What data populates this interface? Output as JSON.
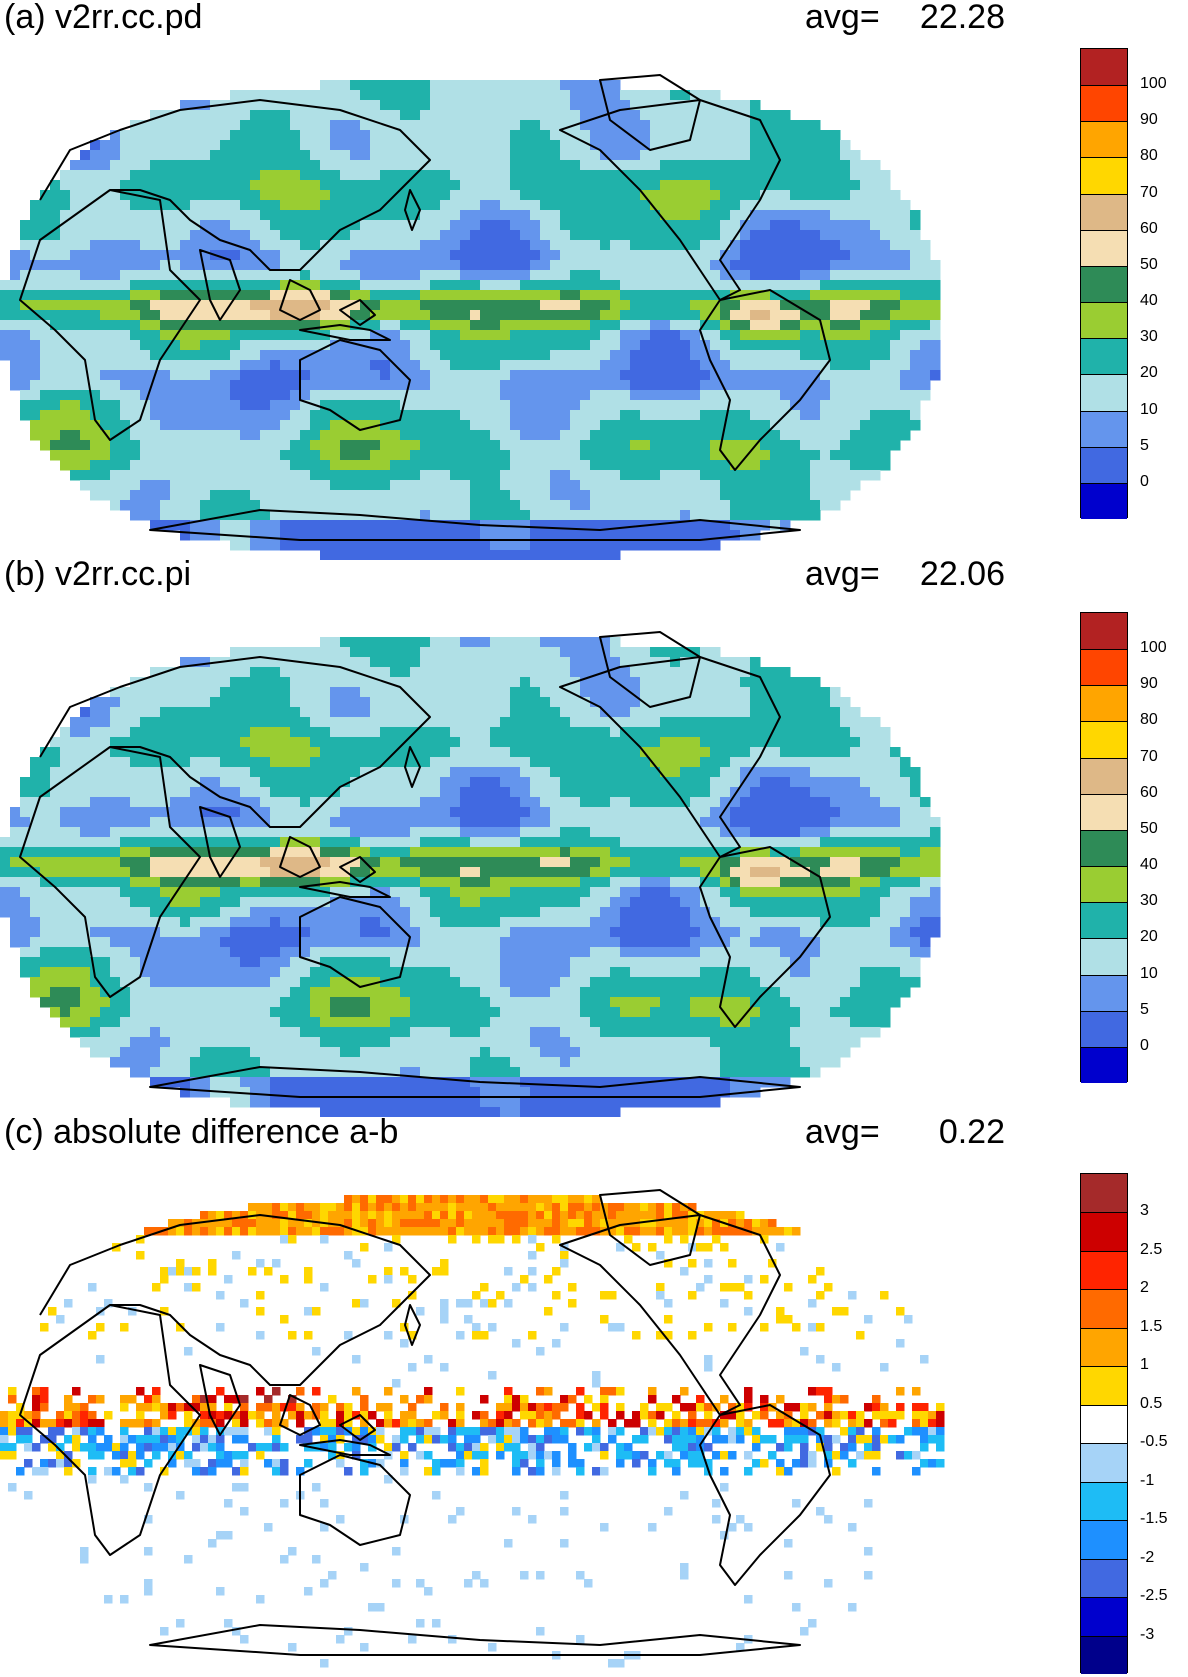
{
  "panels": [
    {
      "id": "a",
      "title": "(a) v2rr.cc.pd",
      "avg_label": "avg=",
      "avg_value": "22.28",
      "legend": {
        "labels": [
          "100",
          "90",
          "80",
          "70",
          "60",
          "50",
          "40",
          "30",
          "20",
          "10",
          "5",
          "0"
        ],
        "colors": [
          "#b22222",
          "#ff4500",
          "#ffa500",
          "#ffd700",
          "#deb887",
          "#f5deb3",
          "#2e8b57",
          "#9acd32",
          "#20b2aa",
          "#b0e0e6",
          "#6495ed",
          "#4169e1",
          "#0000cd"
        ]
      }
    },
    {
      "id": "b",
      "title": "(b) v2rr.cc.pi",
      "avg_label": "avg=",
      "avg_value": "22.06",
      "legend": {
        "labels": [
          "100",
          "90",
          "80",
          "70",
          "60",
          "50",
          "40",
          "30",
          "20",
          "10",
          "5",
          "0"
        ],
        "colors": [
          "#b22222",
          "#ff4500",
          "#ffa500",
          "#ffd700",
          "#deb887",
          "#f5deb3",
          "#2e8b57",
          "#9acd32",
          "#20b2aa",
          "#b0e0e6",
          "#6495ed",
          "#4169e1",
          "#0000cd"
        ]
      }
    },
    {
      "id": "c",
      "title": "(c) absolute difference a-b",
      "avg_label": "avg=",
      "avg_value": "0.22",
      "legend": {
        "labels": [
          "3",
          "2.5",
          "2",
          "1.5",
          "1",
          "0.5",
          "-0.5",
          "-1",
          "-1.5",
          "-2",
          "-2.5",
          "-3"
        ],
        "colors": [
          "#a52a2a",
          "#cd0000",
          "#ff2400",
          "#ff6a00",
          "#ffa500",
          "#ffd700",
          "#ffffff",
          "#a6d3f7",
          "#1ebcf5",
          "#1e90ff",
          "#4169e1",
          "#0000cd",
          "#00008b"
        ]
      }
    }
  ]
}
